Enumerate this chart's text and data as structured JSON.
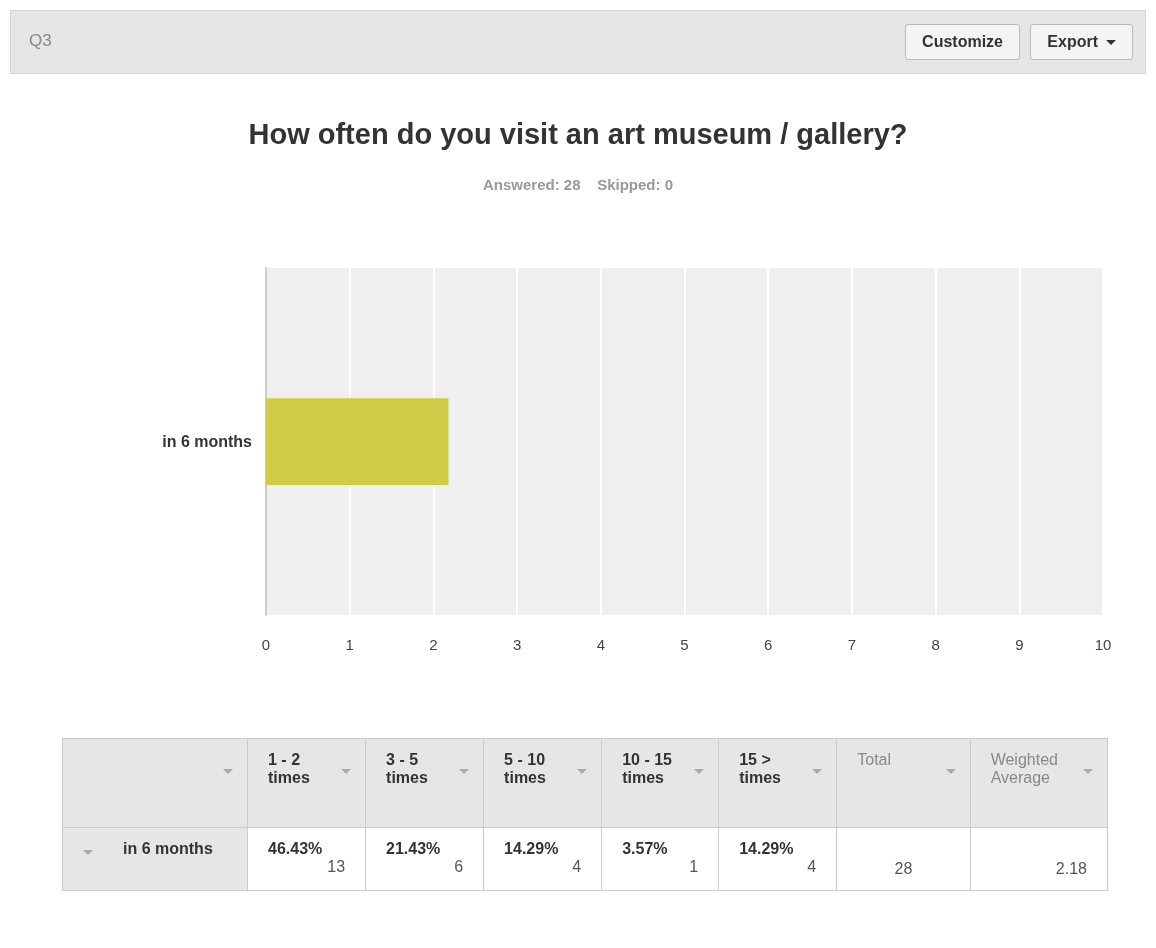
{
  "chart_data": [
    {
      "type": "bar",
      "orientation": "horizontal",
      "title": "How often do you visit an art museum / gallery?",
      "subtitle": "Answered: 28    Skipped: 0",
      "annotations": [
        "Q3",
        "Customize",
        "Export"
      ],
      "categories": [
        "in 6 months"
      ],
      "values": [
        2.18
      ],
      "color": "#d0cc48",
      "xlim": [
        0,
        10
      ],
      "xticks": [
        0,
        1,
        2,
        3,
        4,
        5,
        6,
        7,
        8,
        9,
        10
      ],
      "grid": "x"
    },
    {
      "type": "other",
      "categories": [
        "1 - 2 times",
        "3 - 5 times",
        "5 - 10 times",
        "10 - 15 times",
        "15 > times",
        "Total",
        "Weighted Average"
      ],
      "y_categories": [
        "in 6 months"
      ],
      "cell_labels": [
        [
          "46.43%\n13",
          "21.43%\n6",
          "14.29%\n4",
          "3.57%\n1",
          "14.29%\n4",
          "28",
          "2.18"
        ]
      ]
    }
  ]
}
